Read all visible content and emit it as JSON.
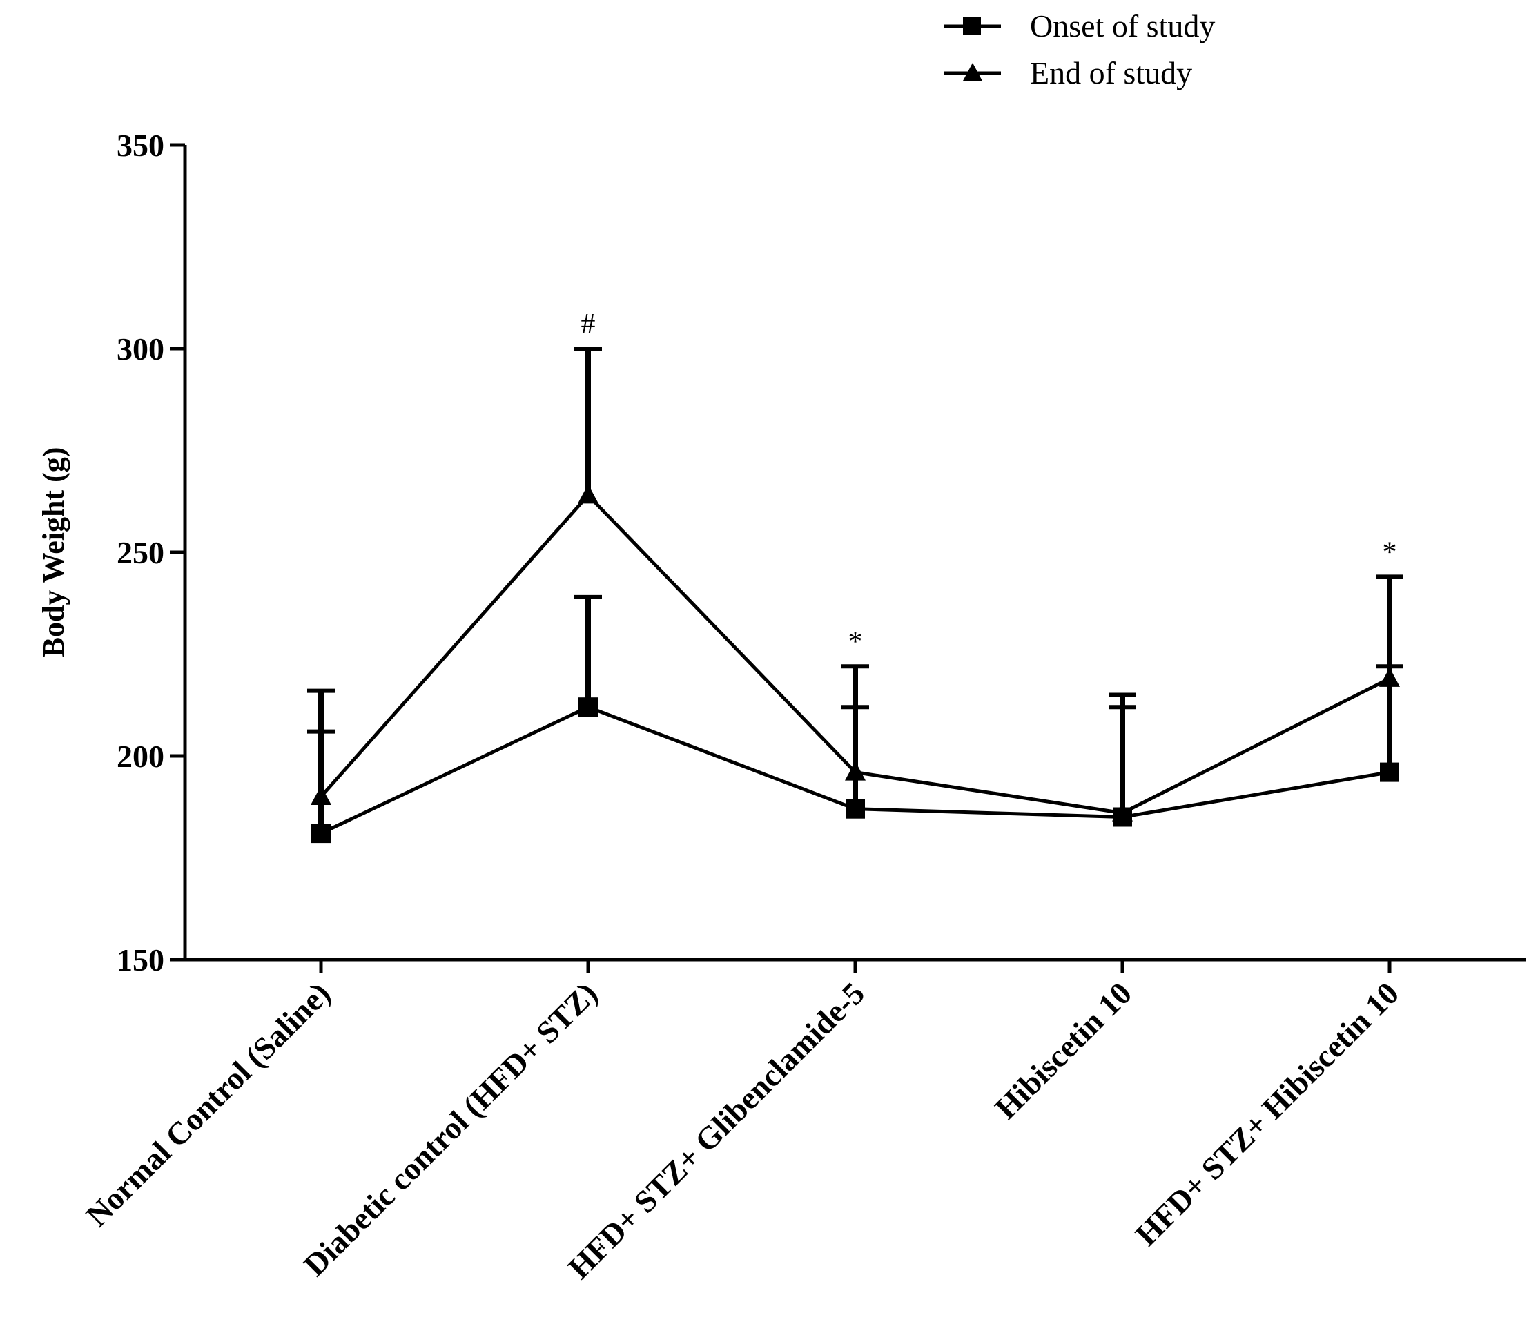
{
  "chart_data": {
    "type": "line",
    "title": "",
    "xlabel": "",
    "ylabel": "Body Weight (g)",
    "ylim": [
      150,
      350
    ],
    "yticks": [
      150,
      200,
      250,
      300,
      350
    ],
    "grid": false,
    "legend_position": "top-right",
    "categories": [
      "Normal Control (Saline)",
      "Diabetic control (HFD+ STZ)",
      "HFD+ STZ+ Glibenclamide-5",
      "Hibiscetin 10",
      "HFD+ STZ+ Hibiscetin 10"
    ],
    "series": [
      {
        "name": "Onset of study",
        "marker": "square",
        "values": [
          181,
          212,
          187,
          185,
          196
        ],
        "errors": [
          25,
          27,
          25,
          27,
          26
        ]
      },
      {
        "name": "End of study",
        "marker": "triangle",
        "values": [
          190,
          264,
          196,
          186,
          219
        ],
        "errors": [
          26,
          36,
          26,
          29,
          25
        ]
      }
    ],
    "annotations": [
      {
        "category_index": 1,
        "text": "#"
      },
      {
        "category_index": 2,
        "text": "*"
      },
      {
        "category_index": 4,
        "text": "*"
      }
    ]
  }
}
